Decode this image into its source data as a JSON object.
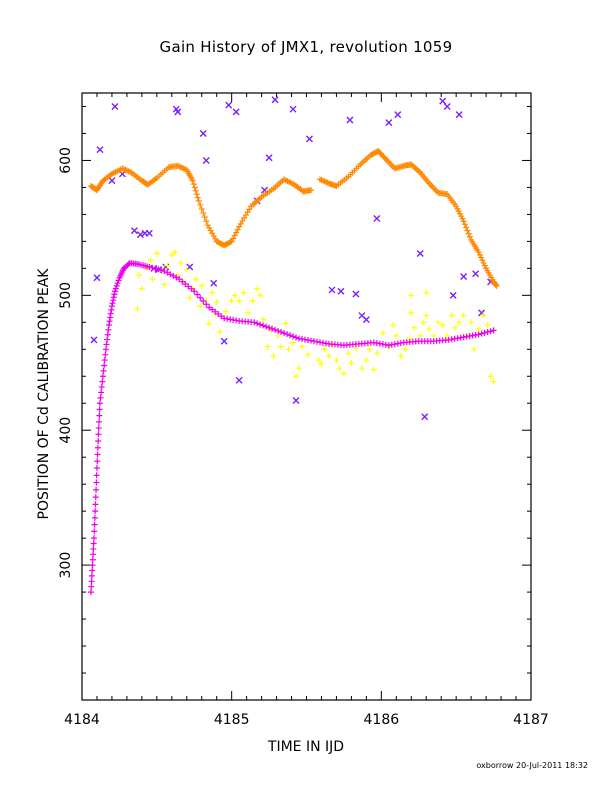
{
  "chart_data": {
    "type": "scatter",
    "title": "Gain History of JMX1, revolution 1059",
    "xlabel": "TIME IN IJD",
    "ylabel": "POSITION OF Cd CALIBRATION PEAK",
    "xlim": [
      4184,
      4187
    ],
    "ylim": [
      200,
      650
    ],
    "x_ticks": [
      "4184",
      "4185",
      "4186",
      "4187"
    ],
    "y_ticks": [
      "300",
      "400",
      "500",
      "600"
    ],
    "grid": false,
    "series": [
      {
        "color": "#7a1fff",
        "marker": "x",
        "points": [
          [
            4184.08,
            467
          ],
          [
            4184.1,
            513
          ],
          [
            4184.12,
            608
          ],
          [
            4184.2,
            585
          ],
          [
            4184.22,
            640
          ],
          [
            4184.27,
            590
          ],
          [
            4184.35,
            548
          ],
          [
            4184.39,
            545
          ],
          [
            4184.42,
            546
          ],
          [
            4184.45,
            546
          ],
          [
            4184.48,
            520
          ],
          [
            4184.51,
            519
          ],
          [
            4184.56,
            521
          ],
          [
            4184.63,
            638
          ],
          [
            4184.64,
            636
          ],
          [
            4184.72,
            521
          ],
          [
            4184.81,
            620
          ],
          [
            4184.83,
            600
          ],
          [
            4184.88,
            509
          ],
          [
            4184.95,
            466
          ],
          [
            4184.98,
            641
          ],
          [
            4185.03,
            636
          ],
          [
            4185.05,
            437
          ],
          [
            4185.17,
            570
          ],
          [
            4185.22,
            578
          ],
          [
            4185.25,
            602
          ],
          [
            4185.29,
            645
          ],
          [
            4185.41,
            638
          ],
          [
            4185.43,
            422
          ],
          [
            4185.52,
            616
          ],
          [
            4185.67,
            504
          ],
          [
            4185.73,
            503
          ],
          [
            4185.79,
            630
          ],
          [
            4185.83,
            501
          ],
          [
            4185.87,
            485
          ],
          [
            4185.9,
            482
          ],
          [
            4185.97,
            557
          ],
          [
            4186.05,
            628
          ],
          [
            4186.11,
            634
          ],
          [
            4186.26,
            531
          ],
          [
            4186.29,
            410
          ],
          [
            4186.41,
            644
          ],
          [
            4186.44,
            640
          ],
          [
            4186.48,
            500
          ],
          [
            4186.52,
            634
          ],
          [
            4186.55,
            514
          ],
          [
            4186.63,
            516
          ],
          [
            4186.67,
            487
          ],
          [
            4186.73,
            510
          ]
        ]
      },
      {
        "color": "#ffff00",
        "marker": "+",
        "points": [
          [
            4184.37,
            490
          ],
          [
            4184.38,
            515
          ],
          [
            4184.4,
            505
          ],
          [
            4184.43,
            520
          ],
          [
            4184.46,
            526
          ],
          [
            4184.47,
            512
          ],
          [
            4184.5,
            531
          ],
          [
            4184.53,
            518
          ],
          [
            4184.55,
            508
          ],
          [
            4184.57,
            522
          ],
          [
            4184.6,
            530
          ],
          [
            4184.62,
            532
          ],
          [
            4184.64,
            515
          ],
          [
            4184.66,
            524
          ],
          [
            4184.68,
            510
          ],
          [
            4184.7,
            519
          ],
          [
            4184.72,
            498
          ],
          [
            4184.74,
            505
          ],
          [
            4184.76,
            512
          ],
          [
            4184.79,
            492
          ],
          [
            4184.8,
            507
          ],
          [
            4184.83,
            496
          ],
          [
            4184.85,
            479
          ],
          [
            4184.87,
            502
          ],
          [
            4184.89,
            486
          ],
          [
            4184.9,
            495
          ],
          [
            4184.92,
            473
          ],
          [
            4184.96,
            488
          ],
          [
            4185.0,
            496
          ],
          [
            4185.02,
            500
          ],
          [
            4185.05,
            496
          ],
          [
            4185.08,
            502
          ],
          [
            4185.11,
            487
          ],
          [
            4185.14,
            496
          ],
          [
            4185.17,
            505
          ],
          [
            4185.19,
            500
          ],
          [
            4185.21,
            482
          ],
          [
            4185.24,
            462
          ],
          [
            4185.26,
            475
          ],
          [
            4185.28,
            455
          ],
          [
            4185.31,
            470
          ],
          [
            4185.33,
            462
          ],
          [
            4185.36,
            479
          ],
          [
            4185.38,
            460
          ],
          [
            4185.41,
            465
          ],
          [
            4185.43,
            440
          ],
          [
            4185.45,
            446
          ],
          [
            4185.47,
            462
          ],
          [
            4185.51,
            456
          ],
          [
            4185.55,
            466
          ],
          [
            4185.58,
            452
          ],
          [
            4185.6,
            449
          ],
          [
            4185.62,
            460
          ],
          [
            4185.65,
            455
          ],
          [
            4185.67,
            463
          ],
          [
            4185.7,
            452
          ],
          [
            4185.72,
            446
          ],
          [
            4185.75,
            442
          ],
          [
            4185.78,
            457
          ],
          [
            4185.8,
            450
          ],
          [
            4185.83,
            461
          ],
          [
            4185.87,
            446
          ],
          [
            4185.9,
            452
          ],
          [
            4185.92,
            460
          ],
          [
            4185.95,
            445
          ],
          [
            4185.97,
            457
          ],
          [
            4186.01,
            472
          ],
          [
            4186.05,
            462
          ],
          [
            4186.08,
            478
          ],
          [
            4186.1,
            470
          ],
          [
            4186.13,
            455
          ],
          [
            4186.16,
            460
          ],
          [
            4186.19,
            468
          ],
          [
            4186.2,
            487
          ],
          [
            4186.22,
            476
          ],
          [
            4186.26,
            470
          ],
          [
            4186.28,
            480
          ],
          [
            4186.3,
            485
          ],
          [
            4186.32,
            475
          ],
          [
            4186.35,
            470
          ],
          [
            4186.38,
            480
          ],
          [
            4186.41,
            478
          ],
          [
            4186.44,
            470
          ],
          [
            4186.47,
            485
          ],
          [
            4186.49,
            476
          ],
          [
            4186.52,
            480
          ],
          [
            4186.55,
            485
          ],
          [
            4186.58,
            470
          ],
          [
            4186.6,
            480
          ],
          [
            4186.62,
            460
          ],
          [
            4186.65,
            475
          ],
          [
            4186.68,
            485
          ],
          [
            4186.71,
            478
          ],
          [
            4186.73,
            440
          ],
          [
            4186.75,
            436
          ],
          [
            4186.2,
            500
          ],
          [
            4186.3,
            502
          ]
        ]
      },
      {
        "color": "#ee00ee",
        "marker": "+",
        "points": [
          [
            4184.06,
            280
          ],
          [
            4184.07,
            300
          ],
          [
            4184.08,
            320
          ],
          [
            4184.09,
            345
          ],
          [
            4184.1,
            372
          ],
          [
            4184.11,
            397
          ],
          [
            4184.12,
            420
          ],
          [
            4184.14,
            440
          ],
          [
            4184.16,
            460
          ],
          [
            4184.18,
            478
          ],
          [
            4184.2,
            492
          ],
          [
            4184.22,
            503
          ],
          [
            4184.25,
            513
          ],
          [
            4184.28,
            520
          ],
          [
            4184.32,
            524
          ],
          [
            4184.38,
            523
          ],
          [
            4184.45,
            521
          ],
          [
            4184.55,
            518
          ],
          [
            4184.65,
            512
          ],
          [
            4184.75,
            503
          ],
          [
            4184.85,
            491
          ],
          [
            4184.95,
            483
          ],
          [
            4185.05,
            481
          ],
          [
            4185.15,
            480
          ],
          [
            4185.25,
            476
          ],
          [
            4185.35,
            472
          ],
          [
            4185.45,
            468
          ],
          [
            4185.55,
            466
          ],
          [
            4185.65,
            464
          ],
          [
            4185.75,
            463
          ],
          [
            4185.85,
            464
          ],
          [
            4185.95,
            465
          ],
          [
            4186.05,
            463
          ],
          [
            4186.15,
            465
          ],
          [
            4186.25,
            466
          ],
          [
            4186.35,
            466
          ],
          [
            4186.45,
            467
          ],
          [
            4186.55,
            469
          ],
          [
            4186.65,
            471
          ],
          [
            4186.75,
            474
          ]
        ]
      },
      {
        "color": "#ff8800",
        "marker": "+",
        "segments": [
          [
            [
              4184.06,
              581
            ],
            [
              4184.1,
              578
            ],
            [
              4184.14,
              585
            ],
            [
              4184.2,
              590
            ],
            [
              4184.27,
              594
            ],
            [
              4184.33,
              591
            ],
            [
              4184.4,
              585
            ],
            [
              4184.44,
              582
            ],
            [
              4184.5,
              587
            ],
            [
              4184.58,
              595
            ],
            [
              4184.64,
              596
            ],
            [
              4184.7,
              593
            ],
            [
              4184.74,
              585
            ],
            [
              4184.78,
              570
            ],
            [
              4184.84,
              552
            ],
            [
              4184.9,
              540
            ],
            [
              4184.95,
              537
            ],
            [
              4185.0,
              540
            ],
            [
              4185.06,
              553
            ],
            [
              4185.13,
              566
            ],
            [
              4185.2,
              573
            ],
            [
              4185.28,
              579
            ],
            [
              4185.35,
              586
            ],
            [
              4185.42,
              582
            ],
            [
              4185.48,
              577
            ],
            [
              4185.53,
              578
            ]
          ],
          [
            [
              4185.59,
              586
            ],
            [
              4185.65,
              583
            ],
            [
              4185.7,
              581
            ],
            [
              4185.78,
              588
            ],
            [
              4185.86,
              597
            ],
            [
              4185.93,
              604
            ],
            [
              4185.98,
              607
            ],
            [
              4186.03,
              601
            ],
            [
              4186.09,
              594
            ],
            [
              4186.15,
              596
            ],
            [
              4186.2,
              597
            ],
            [
              4186.26,
              591
            ],
            [
              4186.32,
              583
            ],
            [
              4186.38,
              576
            ],
            [
              4186.44,
              575
            ],
            [
              4186.5,
              566
            ],
            [
              4186.55,
              555
            ],
            [
              4186.6,
              541
            ],
            [
              4186.65,
              532
            ],
            [
              4186.7,
              520
            ],
            [
              4186.75,
              510
            ],
            [
              4186.77,
              507
            ]
          ]
        ]
      }
    ],
    "annotations": [
      "oxborrow 20-Jul-2011 18:32"
    ]
  }
}
